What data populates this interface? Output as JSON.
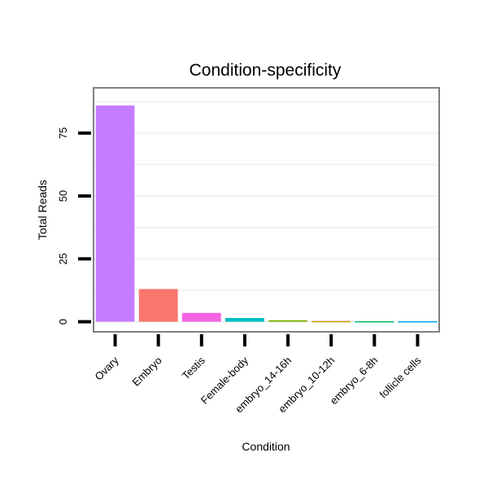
{
  "chart_data": {
    "type": "bar",
    "title": "Condition-specificity",
    "xlabel": "Condition",
    "ylabel": "Total Reads",
    "categories": [
      "Ovary",
      "Embryo",
      "Testis",
      "Female-body",
      "embryo_14-16h",
      "embryo_10-12h",
      "embryo_6-8h",
      "follicle cells"
    ],
    "values": [
      86,
      13,
      3.5,
      1.5,
      0.6,
      0.3,
      0.2,
      0.2
    ],
    "colors": [
      "#C77CFF",
      "#F8766D",
      "#F564E3",
      "#00BFC4",
      "#7CAE00",
      "#CD9600",
      "#00BE67",
      "#00A9FF"
    ],
    "yticks": [
      0,
      25,
      50,
      75
    ],
    "ylim": [
      -4,
      93
    ],
    "grid": true,
    "legend": "none"
  }
}
